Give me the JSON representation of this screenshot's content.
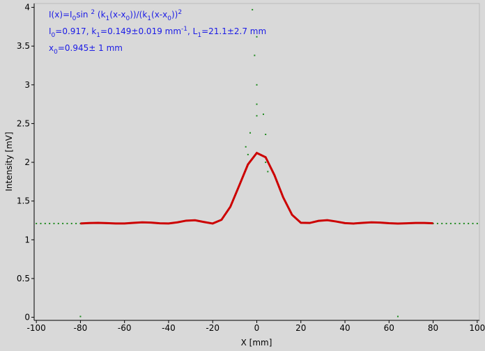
{
  "chart_data": {
    "type": "scatter",
    "x_label": "X [mm]",
    "y_label": "Intensity [mV]",
    "xlim": [
      -101,
      101
    ],
    "ylim": [
      -0.04,
      4.05
    ],
    "xticks": [
      -100,
      -80,
      -60,
      -40,
      -20,
      0,
      20,
      40,
      60,
      80,
      100
    ],
    "yticks": [
      0,
      0.5,
      1,
      1.5,
      2,
      2.5,
      3,
      3.5,
      4
    ],
    "annotations": [
      [
        {
          "t": "I(x)=I"
        },
        {
          "t": "0",
          "pos": "sub"
        },
        {
          "t": "sin "
        },
        {
          "t": "2",
          "pos": "sup"
        },
        {
          "t": " (k"
        },
        {
          "t": "1",
          "pos": "sub"
        },
        {
          "t": "(x-x"
        },
        {
          "t": "0",
          "pos": "sub"
        },
        {
          "t": "))/(k"
        },
        {
          "t": "1",
          "pos": "sub"
        },
        {
          "t": "(x-x"
        },
        {
          "t": "0",
          "pos": "sub"
        },
        {
          "t": "))"
        },
        {
          "t": "2",
          "pos": "sup"
        }
      ],
      [
        {
          "t": "I"
        },
        {
          "t": "0",
          "pos": "sub"
        },
        {
          "t": "=0.917,  k"
        },
        {
          "t": "1",
          "pos": "sub"
        },
        {
          "t": "=0.149±0.019 mm"
        },
        {
          "t": "-1",
          "pos": "sup"
        },
        {
          "t": ",   L"
        },
        {
          "t": "1",
          "pos": "sub"
        },
        {
          "t": "=21.1±2.7 mm"
        }
      ],
      [
        {
          "t": "x"
        },
        {
          "t": "0",
          "pos": "sub"
        },
        {
          "t": "=0.945±  1 mm"
        }
      ]
    ],
    "series": [
      {
        "style": "points",
        "color": "#1e8a1e",
        "x": [
          -100,
          -98,
          -96,
          -94,
          -92,
          -90,
          -88,
          -86,
          -84,
          -82,
          -80,
          80,
          82,
          84,
          86,
          88,
          90,
          92,
          94,
          96,
          98,
          100,
          -2,
          0,
          -1,
          0,
          0,
          0,
          3,
          -3,
          4,
          -4,
          4,
          -5,
          5,
          -80,
          64
        ],
        "values": [
          1.21,
          1.21,
          1.21,
          1.21,
          1.21,
          1.21,
          1.21,
          1.21,
          1.21,
          1.21,
          1.21,
          1.21,
          1.21,
          1.21,
          1.21,
          1.21,
          1.21,
          1.21,
          1.21,
          1.21,
          1.21,
          1.21,
          3.97,
          3.62,
          3.38,
          3.0,
          2.75,
          2.6,
          2.62,
          2.38,
          2.36,
          2.1,
          2.0,
          2.2,
          1.88,
          0.01,
          0.01
        ]
      },
      {
        "style": "line",
        "color": "#cc0000",
        "x": [
          -80,
          -76,
          -72,
          -68,
          -64,
          -60,
          -56,
          -52,
          -48,
          -44,
          -40,
          -36,
          -32,
          -28,
          -24,
          -20,
          -16,
          -12,
          -8,
          -4,
          0,
          4,
          8,
          12,
          16,
          20,
          24,
          28,
          32,
          36,
          40,
          44,
          48,
          52,
          56,
          60,
          64,
          68,
          72,
          76,
          80
        ],
        "values": [
          1.211,
          1.216,
          1.218,
          1.215,
          1.211,
          1.211,
          1.218,
          1.225,
          1.222,
          1.213,
          1.211,
          1.225,
          1.247,
          1.252,
          1.23,
          1.21,
          1.258,
          1.426,
          1.698,
          1.973,
          2.121,
          2.066,
          1.835,
          1.546,
          1.322,
          1.22,
          1.217,
          1.244,
          1.253,
          1.236,
          1.215,
          1.21,
          1.218,
          1.225,
          1.222,
          1.214,
          1.21,
          1.213,
          1.217,
          1.217,
          1.213
        ]
      }
    ]
  }
}
